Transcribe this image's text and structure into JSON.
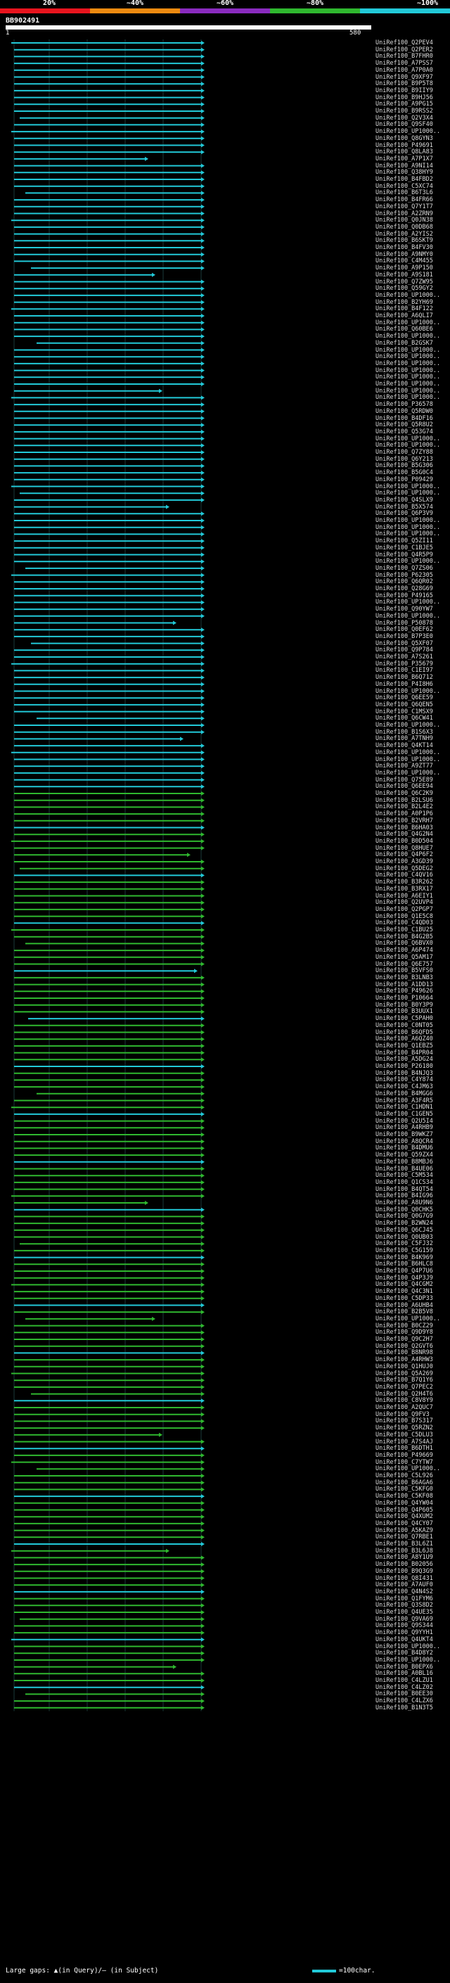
{
  "legend": {
    "labels": [
      "20%",
      "~40%",
      "~60%",
      "~80%",
      "~100%"
    ],
    "colors": [
      "#e8141e",
      "#ee8a10",
      "#8a2bbf",
      "#2fb82f",
      "#22c9d8"
    ]
  },
  "query": {
    "id": "BB902491",
    "start": "1",
    "end": "580"
  },
  "hits": [
    "UniRef100_Q2PEV4",
    "UniRef100_Q2PER2",
    "UniRef100_B7FHR0",
    "UniRef100_A7PSS7",
    "UniRef100_A7P0A0",
    "UniRef100_Q9XF97",
    "UniRef100_B9P5T8",
    "UniRef100_B9IIY9",
    "UniRef100_B9HJ56",
    "UniRef100_A9PG15",
    "UniRef100_B9RSS2",
    "UniRef100_Q2V3X4",
    "UniRef100_Q9SF40",
    "UniRef100_UP1000..",
    "UniRef100_Q8GYN3",
    "UniRef100_P49691",
    "UniRef100_Q8LA83",
    "UniRef100_A7P1X7",
    "UniRef100_A9NI14",
    "UniRef100_Q38HY9",
    "UniRef100_B4FBD2",
    "UniRef100_C5XC74",
    "UniRef100_B6T3L6",
    "UniRef100_B4FR66",
    "UniRef100_Q7Y1T7",
    "UniRef100_A2ZRN9",
    "UniRef100_Q0JN38",
    "UniRef100_Q0DB68",
    "UniRef100_A2YIS2",
    "UniRef100_B6SKT9",
    "UniRef100_B4FV30",
    "UniRef100_A9NMY0",
    "UniRef100_C4M455",
    "UniRef100_A9P150",
    "UniRef100_A9S181",
    "UniRef100_Q7ZW95",
    "UniRef100_Q59GY2",
    "UniRef100_UP1000..",
    "UniRef100_B2YH69",
    "UniRef100_B4F122",
    "UniRef100_A6QLI7",
    "UniRef100_UP1000..",
    "UniRef100_Q60BE6",
    "UniRef100_UP1000..",
    "UniRef100_B2GSK7",
    "UniRef100_UP1000..",
    "UniRef100_UP1000..",
    "UniRef100_UP1000..",
    "UniRef100_UP1000..",
    "UniRef100_UP1000..",
    "UniRef100_UP1000..",
    "UniRef100_UP1000..",
    "UniRef100_UP1000..",
    "UniRef100_P36578",
    "UniRef100_Q5RDW0",
    "UniRef100_B4DF16",
    "UniRef100_Q5R8U2",
    "UniRef100_Q53G74",
    "UniRef100_UP1000..",
    "UniRef100_UP1000..",
    "UniRef100_Q7ZY88",
    "UniRef100_Q6Y213",
    "UniRef100_B5G306",
    "UniRef100_B5G0C4",
    "UniRef100_P09429",
    "UniRef100_UP1000..",
    "UniRef100_UP1000..",
    "UniRef100_Q4SLX9",
    "UniRef100_B5X574",
    "UniRef100_Q6P3V9",
    "UniRef100_UP1000..",
    "UniRef100_UP1000..",
    "UniRef100_UP1000..",
    "UniRef100_Q5ZI11",
    "UniRef100_C1BJE5",
    "UniRef100_Q4R5P9",
    "UniRef100_UP1000..",
    "UniRef100_Q7ZS06",
    "UniRef100_P62305",
    "UniRef100_Q6QR02",
    "UniRef100_Q28G69",
    "UniRef100_P49165",
    "UniRef100_UP1000..",
    "UniRef100_Q90YW7",
    "UniRef100_UP1000..",
    "UniRef100_P50878",
    "UniRef100_Q0EF62",
    "UniRef100_B7P3E0",
    "UniRef100_Q5XF07",
    "UniRef100_Q9P784",
    "UniRef100_A7S261",
    "UniRef100_P35679",
    "UniRef100_C1EI97",
    "UniRef100_B6Q712",
    "UniRef100_P4I8H6",
    "UniRef100_UP1000..",
    "UniRef100_Q6EE59",
    "UniRef100_Q6QEN5",
    "UniRef100_C1MSX9",
    "UniRef100_Q6CW41",
    "UniRef100_UP1000..",
    "UniRef100_B1S6X3",
    "UniRef100_A7TNH9",
    "UniRef100_Q4KT14",
    "UniRef100_UP1000..",
    "UniRef100_UP1000..",
    "UniRef100_A9ZT77",
    "UniRef100_UP1000..",
    "UniRef100_Q75E89",
    "UniRef100_Q6EE94",
    "UniRef100_Q6C2K9",
    "UniRef100_B2LSU6",
    "UniRef100_B2L4E2",
    "UniRef100_A0P1P6",
    "UniRef100_B2VRH7",
    "UniRef100_B6HA03",
    "UniRef100_Q4G2N4",
    "UniRef100_B0D504",
    "UniRef100_Q8HUE7",
    "UniRef100_Q4P6F2",
    "UniRef100_A3GD39",
    "UniRef100_Q5DEG2",
    "UniRef100_C4QV16",
    "UniRef100_B3R262",
    "UniRef100_B3RX17",
    "UniRef100_A6EIY1",
    "UniRef100_Q2UVP4",
    "UniRef100_Q2PGP7",
    "UniRef100_Q1E5C8",
    "UniRef100_C4QD03",
    "UniRef100_C1BU25",
    "UniRef100_B4G2B5",
    "UniRef100_Q6BVX0",
    "UniRef100_A6P474",
    "UniRef100_Q5AM17",
    "UniRef100_Q6E757",
    "UniRef100_B5VFS0",
    "UniRef100_B3LNB3",
    "UniRef100_A1DD13",
    "UniRef100_P49626",
    "UniRef100_P10664",
    "UniRef100_B0Y3P9",
    "UniRef100_B3UUX1",
    "UniRef100_C5PAH0",
    "UniRef100_C0NT05",
    "UniRef100_B6QFD5",
    "UniRef100_A6QZ40",
    "UniRef100_Q1EBZ5",
    "UniRef100_B4PR04",
    "UniRef100_A5DG24",
    "UniRef100_P26180",
    "UniRef100_B4NJQ3",
    "UniRef100_C4Y874",
    "UniRef100_C4JM63",
    "UniRef100_B4MGG6",
    "UniRef100_A3F4R5",
    "UniRef100_C1HDN1",
    "UniRef100_C1GEN5",
    "UniRef100_Q2U5I4",
    "UniRef100_A4RHB9",
    "UniRef100_B9WKZ7",
    "UniRef100_A8QCR4",
    "UniRef100_B4DMU6",
    "UniRef100_Q59ZX4",
    "UniRef100_B8MBJ6",
    "UniRef100_B4UE06",
    "UniRef100_C5M534",
    "UniRef100_Q1CS34",
    "UniRef100_B4QT54",
    "UniRef100_B4IG96",
    "UniRef100_A8U9N6",
    "UniRef100_Q0CHK5",
    "UniRef100_Q0G7G9",
    "UniRef100_B2WN24",
    "UniRef100_Q6CJ45",
    "UniRef100_Q0UB03",
    "UniRef100_C5FJ32",
    "UniRef100_C5G159",
    "UniRef100_B4K969",
    "UniRef100_B6HLC8",
    "UniRef100_Q4P7U6",
    "UniRef100_Q4P3J9",
    "UniRef100_Q4CGM2",
    "UniRef100_Q4C3N1",
    "UniRef100_C5DP33",
    "UniRef100_A6UHB4",
    "UniRef100_B2B5V8",
    "UniRef100_UP1000..",
    "UniRef100_B0CZ29",
    "UniRef100_Q9D9Y8",
    "UniRef100_Q9C2H7",
    "UniRef100_Q2GVT6",
    "UniRef100_B8NR98",
    "UniRef100_A4RHW3",
    "UniRef100_Q1HUJ0",
    "UniRef100_Q5A269",
    "UniRef100_B7Q1Y6",
    "UniRef100_Q7PEC2",
    "UniRef100_Q2H4T6",
    "UniRef100_C8V8Y9",
    "UniRef100_A2QUC7",
    "UniRef100_Q9FV3",
    "UniRef100_B7S317",
    "UniRef100_Q5RZN2",
    "UniRef100_C5DLU3",
    "UniRef100_A7S4AJ",
    "UniRef100_B6DTH1",
    "UniRef100_P49669",
    "UniRef100_C7YTW7",
    "UniRef100_UP1000..",
    "UniRef100_C5L926",
    "UniRef100_B6AGA6",
    "UniRef100_C5KFG0",
    "UniRef100_C5KF08",
    "UniRef100_Q4YW04",
    "UniRef100_Q4P605",
    "UniRef100_Q4XUM2",
    "UniRef100_Q4CY07",
    "UniRef100_A5KAZ9",
    "UniRef100_Q7RBE1",
    "UniRef100_B3L6Z1",
    "UniRef100_B3L6J8",
    "UniRef100_A8Y1U9",
    "UniRef100_B02056",
    "UniRef100_B9Q3G9",
    "UniRef100_Q8I431",
    "UniRef100_A7AUF0",
    "UniRef100_Q4N4S2",
    "UniRef100_Q1FYM6",
    "UniRef100_Q3S8D2",
    "UniRef100_Q4UE35",
    "UniRef100_Q9VA69",
    "UniRef100_Q9S344",
    "UniRef100_Q9YYH1",
    "UniRef100_Q4UKT4",
    "UniRef100_UP1000..",
    "UniRef100_B4D8Y2",
    "UniRef100_UP1000..",
    "UniRef100_B0EPX6",
    "UniRef100_A0BL16",
    "UniRef100_C4LZU1",
    "UniRef100_C4LZ02",
    "UniRef100_B0EE30",
    "UniRef100_C4LZX6",
    "UniRef100_B1N3T5"
  ],
  "footer": {
    "left": "Large gaps: ▲(in Query)/— (in Subject)",
    "right": "=100char."
  }
}
